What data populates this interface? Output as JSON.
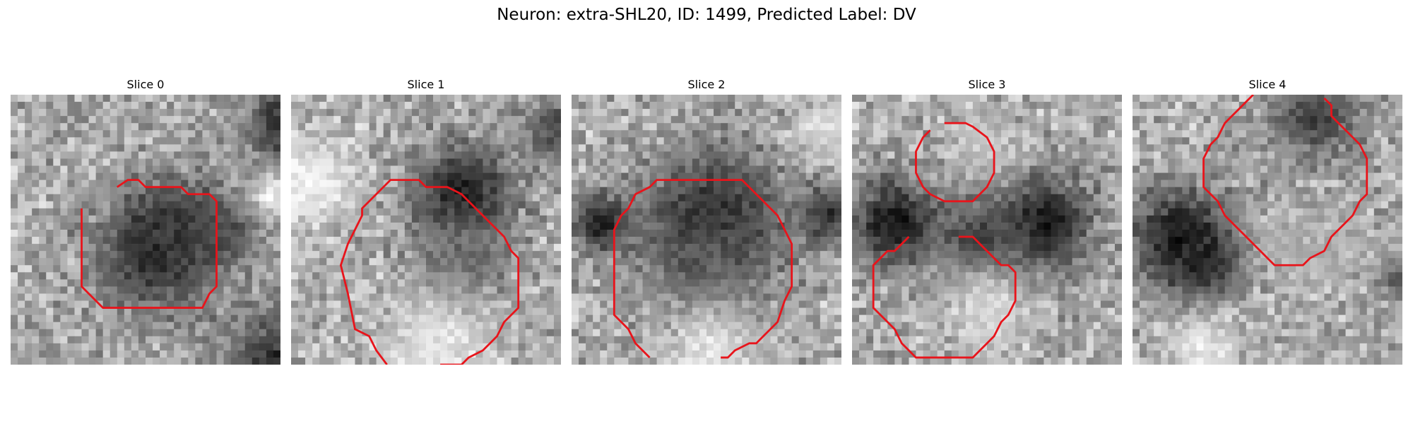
{
  "figure": {
    "title": "Neuron: extra-SHL20, ID: 1499, Predicted Label: DV"
  },
  "panels": [
    {
      "title": "Slice 0",
      "blobs": [
        {
          "cx": 20,
          "cy": 22,
          "r": 10,
          "v": 0.12
        },
        {
          "cx": 24,
          "cy": 19,
          "r": 9,
          "v": 0.22
        },
        {
          "cx": 40,
          "cy": 40,
          "r": 13,
          "v": 0.08
        },
        {
          "cx": 40,
          "cy": 4,
          "r": 9,
          "v": 0.15
        },
        {
          "cx": 30,
          "cy": 19,
          "r": 6,
          "v": 0.3
        },
        {
          "cx": 5,
          "cy": 42,
          "r": 8,
          "v": 0.55
        },
        {
          "cx": 37,
          "cy": 14,
          "r": 4,
          "v": 0.95
        }
      ],
      "contours": [
        [
          [
            15,
            13
          ],
          [
            16.5,
            12
          ],
          [
            18,
            12
          ],
          [
            19,
            13
          ],
          [
            24,
            13
          ],
          [
            25,
            14
          ],
          [
            28,
            14
          ],
          [
            29,
            15
          ],
          [
            29,
            27
          ],
          [
            28,
            28
          ],
          [
            27,
            30
          ],
          [
            13,
            30
          ],
          [
            11,
            28
          ],
          [
            10,
            27
          ],
          [
            10,
            16
          ]
        ]
      ]
    },
    {
      "title": "Slice 1",
      "blobs": [
        {
          "cx": 24,
          "cy": 14,
          "r": 9,
          "v": 0.1
        },
        {
          "cx": 24,
          "cy": 23,
          "r": 8,
          "v": 0.4
        },
        {
          "cx": 38,
          "cy": 5,
          "r": 6,
          "v": 0.25
        },
        {
          "cx": 2,
          "cy": 12,
          "r": 9,
          "v": 0.95
        },
        {
          "cx": 20,
          "cy": 36,
          "r": 10,
          "v": 0.9
        }
      ],
      "contours": [
        [
          [
            13.5,
            38
          ],
          [
            12,
            36
          ],
          [
            11,
            34
          ],
          [
            9,
            33
          ],
          [
            8,
            28
          ],
          [
            7,
            24
          ],
          [
            8,
            21
          ],
          [
            9,
            19
          ],
          [
            10,
            17
          ],
          [
            10,
            16
          ],
          [
            13,
            13
          ],
          [
            14,
            12
          ],
          [
            18,
            12
          ],
          [
            19,
            13
          ],
          [
            22,
            13
          ],
          [
            24,
            14
          ],
          [
            26,
            16
          ],
          [
            28,
            18
          ],
          [
            30,
            20
          ],
          [
            31,
            22
          ],
          [
            32,
            23
          ],
          [
            32,
            30
          ],
          [
            30,
            32
          ],
          [
            29,
            34
          ],
          [
            28,
            35
          ],
          [
            27,
            36
          ],
          [
            25,
            37
          ],
          [
            24,
            38
          ],
          [
            23,
            38
          ],
          [
            21,
            38
          ]
        ]
      ]
    },
    {
      "title": "Slice 2",
      "blobs": [
        {
          "cx": 20,
          "cy": 18,
          "r": 13,
          "v": 0.15
        },
        {
          "cx": 19,
          "cy": 24,
          "r": 8,
          "v": 0.35
        },
        {
          "cx": 4,
          "cy": 18,
          "r": 5,
          "v": 0.12
        },
        {
          "cx": 36,
          "cy": 17,
          "r": 5,
          "v": 0.18
        },
        {
          "cx": 20,
          "cy": 36,
          "r": 8,
          "v": 0.88
        },
        {
          "cx": 36,
          "cy": 5,
          "r": 5,
          "v": 0.9
        }
      ],
      "contours": [
        [
          [
            11,
            37
          ],
          [
            9,
            35
          ],
          [
            8,
            33
          ],
          [
            6,
            31
          ],
          [
            6,
            25
          ],
          [
            6,
            19
          ],
          [
            7,
            17
          ],
          [
            8,
            16
          ],
          [
            9,
            14
          ],
          [
            11,
            13
          ],
          [
            12,
            12
          ],
          [
            24,
            12
          ],
          [
            25,
            13
          ],
          [
            27,
            15
          ],
          [
            29,
            17
          ],
          [
            30,
            19
          ],
          [
            31,
            21
          ],
          [
            31,
            27
          ],
          [
            30,
            29
          ],
          [
            29,
            32
          ],
          [
            27,
            34
          ],
          [
            26,
            35
          ],
          [
            25,
            35
          ],
          [
            23,
            36
          ],
          [
            22,
            37
          ],
          [
            21,
            37
          ]
        ]
      ]
    },
    {
      "title": "Slice 3",
      "blobs": [
        {
          "cx": 6,
          "cy": 18,
          "r": 8,
          "v": 0.08
        },
        {
          "cx": 27,
          "cy": 18,
          "r": 9,
          "v": 0.1
        },
        {
          "cx": 18,
          "cy": 21,
          "r": 8,
          "v": 0.22
        },
        {
          "cx": 19,
          "cy": 7,
          "r": 6,
          "v": 0.78
        },
        {
          "cx": 19,
          "cy": 30,
          "r": 8,
          "v": 0.85
        }
      ],
      "contours": [
        [
          [
            13,
            4
          ],
          [
            16,
            4
          ],
          [
            17,
            4.5
          ],
          [
            19,
            6
          ],
          [
            20,
            8
          ],
          [
            20,
            11
          ],
          [
            19,
            13
          ],
          [
            18,
            14
          ],
          [
            17,
            15
          ],
          [
            13,
            15
          ],
          [
            11,
            14
          ],
          [
            10,
            13
          ],
          [
            9,
            11
          ],
          [
            9,
            8
          ],
          [
            10,
            6
          ],
          [
            11,
            5
          ]
        ],
        [
          [
            15,
            20
          ],
          [
            17,
            20
          ],
          [
            18,
            21
          ],
          [
            19,
            22
          ],
          [
            20,
            23
          ],
          [
            21,
            24
          ],
          [
            22,
            24
          ],
          [
            23,
            25
          ],
          [
            23,
            29
          ],
          [
            22,
            31
          ],
          [
            21,
            32
          ],
          [
            20,
            34
          ],
          [
            19,
            35
          ],
          [
            18,
            36
          ],
          [
            17,
            37
          ],
          [
            9,
            37
          ],
          [
            8,
            36
          ],
          [
            7,
            35
          ],
          [
            6,
            33
          ],
          [
            5,
            32
          ],
          [
            4,
            31
          ],
          [
            3,
            30
          ],
          [
            3,
            24
          ],
          [
            4,
            23
          ],
          [
            5,
            22
          ],
          [
            6,
            22
          ],
          [
            7,
            21
          ],
          [
            8,
            20
          ]
        ]
      ]
    },
    {
      "title": "Slice 4",
      "blobs": [
        {
          "cx": 7,
          "cy": 20,
          "r": 9,
          "v": 0.08
        },
        {
          "cx": 10,
          "cy": 24,
          "r": 6,
          "v": 0.15
        },
        {
          "cx": 26,
          "cy": 3,
          "r": 8,
          "v": 0.25
        },
        {
          "cx": 26,
          "cy": 22,
          "r": 8,
          "v": 0.7
        },
        {
          "cx": 10,
          "cy": 36,
          "r": 6,
          "v": 0.9
        },
        {
          "cx": 38,
          "cy": 26,
          "r": 4,
          "v": 0.3
        }
      ],
      "contours": [
        [
          [
            17,
            0
          ],
          [
            16,
            1
          ],
          [
            15,
            2
          ],
          [
            14,
            3
          ],
          [
            13,
            4
          ],
          [
            12,
            6
          ],
          [
            11,
            7
          ],
          [
            10,
            9
          ],
          [
            10,
            13
          ],
          [
            11,
            14
          ],
          [
            12,
            15
          ],
          [
            13,
            17
          ],
          [
            14,
            18
          ],
          [
            15,
            19
          ],
          [
            16,
            20
          ],
          [
            17,
            21
          ],
          [
            18,
            22
          ],
          [
            19,
            23
          ],
          [
            20,
            24
          ],
          [
            24,
            24
          ],
          [
            25,
            23
          ],
          [
            27,
            22
          ],
          [
            28,
            20
          ],
          [
            30,
            18
          ],
          [
            31,
            17
          ],
          [
            32,
            15
          ],
          [
            33,
            14
          ],
          [
            33,
            9
          ],
          [
            32,
            7
          ],
          [
            31,
            6
          ],
          [
            30,
            5
          ],
          [
            29,
            4
          ],
          [
            28,
            3
          ],
          [
            28,
            1.5
          ],
          [
            27,
            0.5
          ]
        ]
      ]
    }
  ]
}
